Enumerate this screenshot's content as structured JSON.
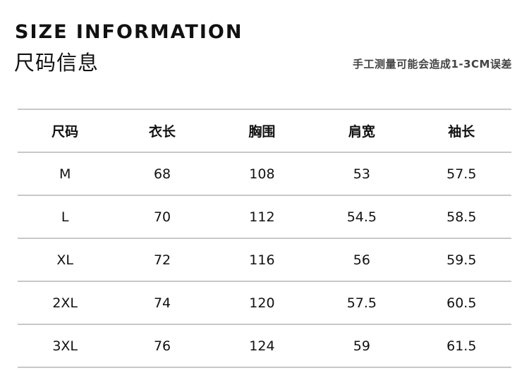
{
  "header": {
    "title_en": "SIZE INFORMATION",
    "title_cn": "尺码信息",
    "note": "手工测量可能会造成1-3CM误差"
  },
  "table": {
    "columns": [
      "尺码",
      "衣长",
      "胸围",
      "肩宽",
      "袖长"
    ],
    "rows": [
      [
        "M",
        "68",
        "108",
        "53",
        "57.5"
      ],
      [
        "L",
        "70",
        "112",
        "54.5",
        "58.5"
      ],
      [
        "XL",
        "72",
        "116",
        "56",
        "59.5"
      ],
      [
        "2XL",
        "74",
        "120",
        "57.5",
        "60.5"
      ],
      [
        "3XL",
        "76",
        "124",
        "59",
        "61.5"
      ]
    ]
  }
}
